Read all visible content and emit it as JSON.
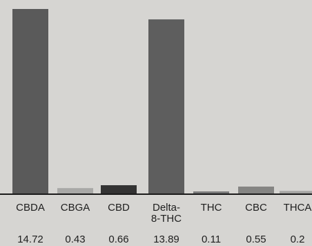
{
  "chart_data": {
    "type": "bar",
    "categories": [
      [
        "CBDA"
      ],
      [
        "CBGA"
      ],
      [
        "CBD"
      ],
      [
        "Delta-",
        "8-THC"
      ],
      [
        "THC"
      ],
      [
        "CBC"
      ],
      [
        "THCA"
      ]
    ],
    "values": [
      14.72,
      0.43,
      0.66,
      13.89,
      0.11,
      0.55,
      0.2
    ],
    "value_labels": [
      "14.72",
      "0.43",
      "0.66",
      "13.89",
      "0.11",
      "0.55",
      "0.2"
    ],
    "colors": [
      "#5a5a5a",
      "#a9a9a7",
      "#333333",
      "#5e5e5e",
      "#7a7a7a",
      "#858583",
      "#a4a4a2"
    ],
    "title": "",
    "xlabel": "",
    "ylabel": "",
    "ylim": [
      0,
      14.72
    ],
    "grid": false,
    "legend": "none"
  }
}
